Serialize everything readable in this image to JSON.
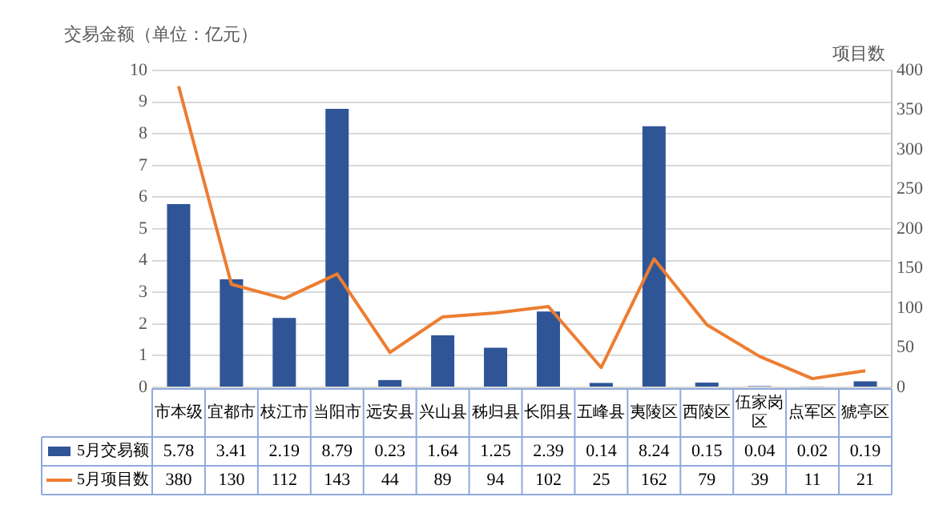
{
  "chart_data": {
    "type": "bar",
    "ylabel": "交易金额（单位：亿元）",
    "y2label": "项目数",
    "categories": [
      "市本级",
      "宜都市",
      "枝江市",
      "当阳市",
      "远安县",
      "兴山县",
      "秭归县",
      "长阳县",
      "五峰县",
      "夷陵区",
      "西陵区",
      "伍家岗区",
      "点军区",
      "猇亭区"
    ],
    "series": [
      {
        "name": "5月交易额",
        "color": "#2f5597",
        "values": [
          5.78,
          3.41,
          2.19,
          8.79,
          0.23,
          1.64,
          1.25,
          2.39,
          0.14,
          8.24,
          0.15,
          0.04,
          0.02,
          0.19
        ]
      },
      {
        "name": "5月项目数",
        "type": "line",
        "axis": "y2",
        "color": "#ed7d31",
        "values": [
          380,
          130,
          112,
          143,
          44,
          89,
          94,
          102,
          25,
          162,
          79,
          39,
          11,
          21
        ]
      }
    ],
    "ylim": [
      0,
      10
    ],
    "yticks": [
      0,
      1,
      2,
      3,
      4,
      5,
      6,
      7,
      8,
      9,
      10
    ],
    "y2lim": [
      0,
      400
    ],
    "y2ticks": [
      0,
      50,
      100,
      150,
      200,
      250,
      300,
      350,
      400
    ],
    "grid": "y",
    "legend": "bottom left",
    "marker": "none",
    "data_labels": true
  }
}
